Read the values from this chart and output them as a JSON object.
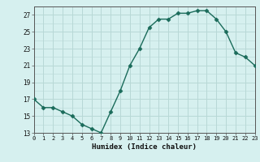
{
  "x": [
    0,
    1,
    2,
    3,
    4,
    5,
    6,
    7,
    8,
    9,
    10,
    11,
    12,
    13,
    14,
    15,
    16,
    17,
    18,
    19,
    20,
    21,
    22,
    23
  ],
  "y": [
    17,
    16,
    16,
    15.5,
    15,
    14,
    13.5,
    13,
    15.5,
    18,
    21,
    23,
    25.5,
    26.5,
    26.5,
    27.2,
    27.2,
    27.5,
    27.5,
    26.5,
    25,
    22.5,
    22,
    21
  ],
  "line_color": "#1a6b5a",
  "marker": "D",
  "marker_size": 2.5,
  "bg_color": "#d6f0ef",
  "grid_color": "#b8d8d6",
  "xlabel": "Humidex (Indice chaleur)",
  "ylim": [
    13,
    28
  ],
  "yticks": [
    13,
    15,
    17,
    19,
    21,
    23,
    25,
    27
  ],
  "xticks": [
    0,
    1,
    2,
    3,
    4,
    5,
    6,
    7,
    8,
    9,
    10,
    11,
    12,
    13,
    14,
    15,
    16,
    17,
    18,
    19,
    20,
    21,
    22,
    23
  ],
  "xlim": [
    0,
    23
  ]
}
